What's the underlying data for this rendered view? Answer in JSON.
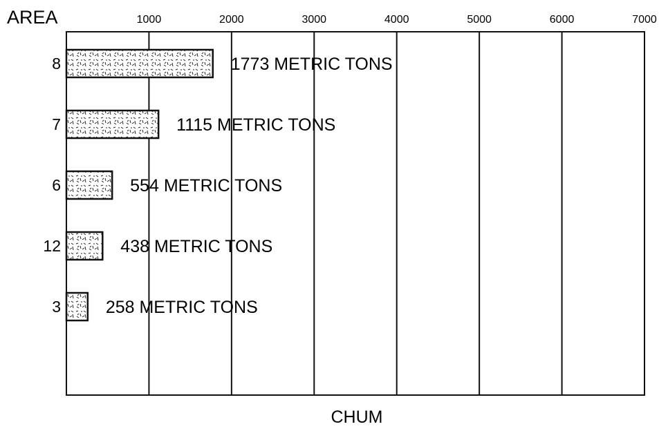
{
  "chart_data": {
    "type": "bar",
    "orientation": "horizontal",
    "ylabel": "AREA",
    "xlabel": "CHUM",
    "xlim": [
      0,
      7000
    ],
    "x_ticks": [
      "1000",
      "2000",
      "3000",
      "4000",
      "5000",
      "6000",
      "7000"
    ],
    "x_tick_values": [
      1000,
      2000,
      3000,
      4000,
      5000,
      6000,
      7000
    ],
    "categories": [
      "8",
      "7",
      "6",
      "12",
      "3"
    ],
    "values": [
      1773,
      1115,
      554,
      438,
      258
    ],
    "data_labels": [
      "1773 METRIC TONS",
      "1115 METRIC TONS",
      "554 METRIC TONS",
      "438 METRIC TONS",
      "258 METRIC TONS"
    ],
    "grid": "vertical",
    "bar_fill": "stippled",
    "colors": {
      "ink": "#111111",
      "background": "#ffffff"
    }
  }
}
